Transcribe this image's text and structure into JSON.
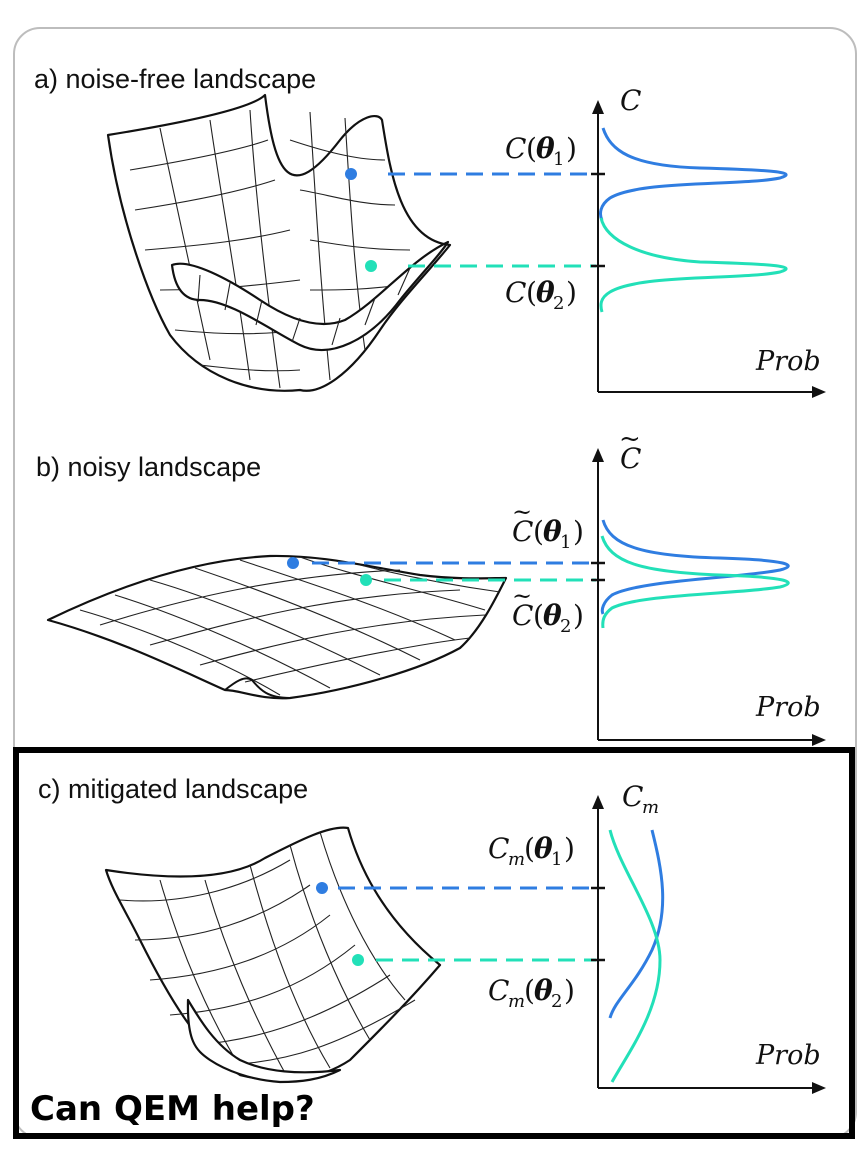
{
  "panels": [
    {
      "label": "a) noise-free landscape",
      "axis_symbol": "C",
      "axis_sub": "",
      "tilde": false,
      "theta1": "C(",
      "theta2": "C(",
      "x_label": "Prob"
    },
    {
      "label": "b) noisy landscape",
      "axis_symbol": "C",
      "axis_sub": "",
      "tilde": true,
      "x_label": "Prob"
    },
    {
      "label": "c) mitigated landscape",
      "axis_symbol": "C",
      "axis_sub": "m",
      "tilde": false,
      "x_label": "Prob"
    }
  ],
  "math": {
    "theta": "θ",
    "sub1": "1",
    "sub2": "2",
    "open": "(",
    "close": ")"
  },
  "callout": "Can QEM help?",
  "colors": {
    "theta1": "#2f7de1",
    "theta2": "#22e0b8",
    "frame": "#bdbdbd",
    "highlight": "#000000"
  }
}
